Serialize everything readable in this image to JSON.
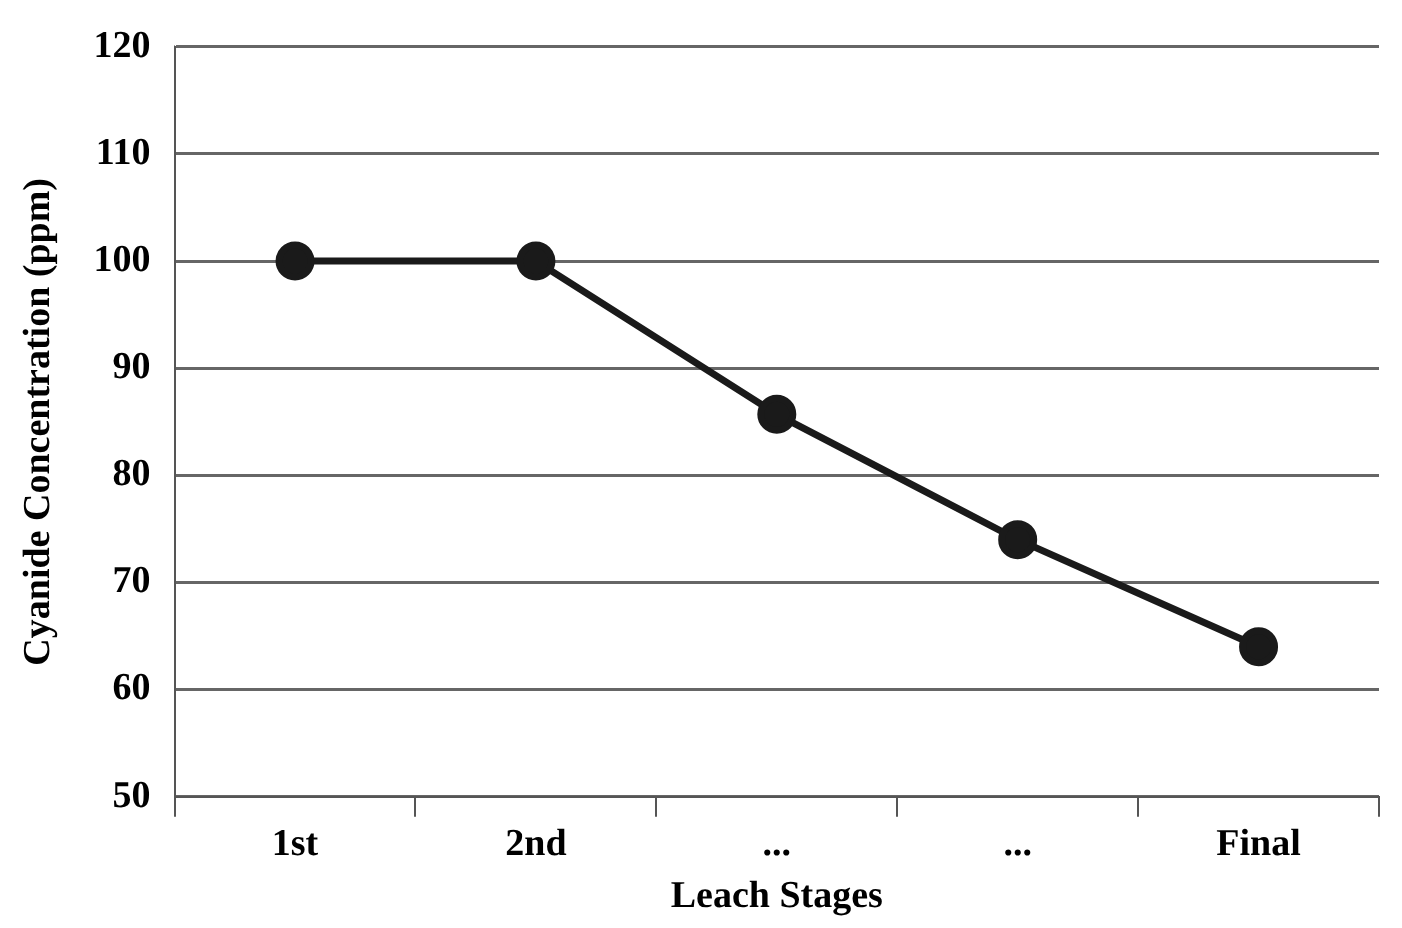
{
  "chart_data": {
    "type": "line",
    "xlabel": "Leach Stages",
    "ylabel": "Cyanide Concentration (ppm)",
    "categories": [
      "1st",
      "2nd",
      "...",
      "...",
      "Final"
    ],
    "series": [
      {
        "color": "#1a1a1a",
        "values": [
          100,
          100,
          85.7,
          74,
          64
        ]
      }
    ],
    "ylim": [
      50,
      120
    ],
    "yticks": [
      50,
      60,
      70,
      80,
      90,
      100,
      110,
      120
    ],
    "grid": "y",
    "legend": false,
    "marker": "circle",
    "line_style": "solid"
  }
}
